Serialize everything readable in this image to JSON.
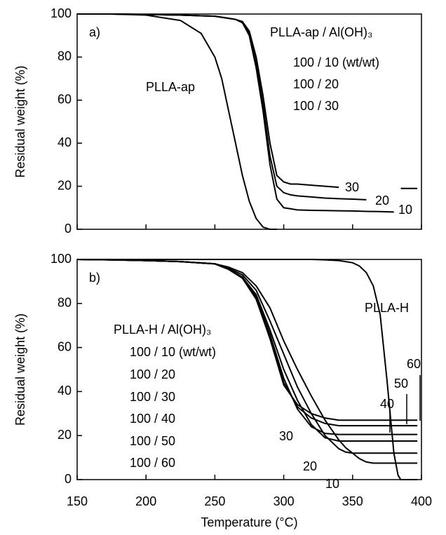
{
  "chart_data": [
    {
      "type": "line",
      "panel_label": "a)",
      "ylabel": "Residual weight  (%)",
      "xlim": [
        150,
        400
      ],
      "xticks": [
        150,
        200,
        250,
        300,
        350,
        400
      ],
      "ylim": [
        0,
        100
      ],
      "yticks": [
        0,
        20,
        40,
        60,
        80,
        100
      ],
      "annotations": [
        "PLLA-ap / Al(OH)₃",
        "100 / 10 (wt/wt)",
        "100 / 20",
        "100 / 30"
      ],
      "x": [
        150,
        175,
        200,
        225,
        240,
        250,
        255,
        260,
        265,
        270,
        275,
        280,
        285,
        290,
        295,
        300,
        305,
        310,
        320,
        330,
        340,
        350,
        360,
        370,
        380,
        385,
        397
      ],
      "series": [
        {
          "name": "PLLA-ap",
          "color": "#000000",
          "values": [
            100,
            100,
            99.5,
            97,
            91,
            80,
            70,
            55,
            40,
            25,
            13,
            5,
            1,
            0,
            0,
            null,
            null,
            null,
            null,
            null,
            null,
            null,
            null,
            null,
            null,
            null,
            null
          ]
        },
        {
          "name": "10",
          "color": "#000000",
          "values": [
            100,
            100,
            99.8,
            99.5,
            99.2,
            99,
            98.5,
            98,
            97.5,
            96,
            90,
            75,
            55,
            30,
            14,
            10,
            9.5,
            9,
            8.8,
            8.7,
            8.6,
            8.5,
            8.3,
            8.2,
            8,
            null,
            null
          ]
        },
        {
          "name": "20",
          "color": "#000000",
          "values": [
            100,
            100,
            99.8,
            99.5,
            99.2,
            99,
            98.5,
            98,
            97.5,
            96,
            91,
            77,
            58,
            34,
            20,
            17,
            16,
            15.5,
            15,
            14.5,
            14.2,
            14,
            13.7,
            null,
            null,
            null,
            null
          ]
        },
        {
          "name": "30",
          "color": "#000000",
          "values": [
            100,
            100,
            99.8,
            99.5,
            99.2,
            99,
            98.5,
            98,
            97.5,
            96.5,
            92,
            80,
            62,
            40,
            25,
            22,
            21,
            21,
            20.5,
            20,
            19.5,
            null,
            null,
            null,
            null,
            19,
            19
          ]
        }
      ]
    },
    {
      "type": "line",
      "panel_label": "b)",
      "ylabel": "Residual weight  (%)",
      "xlabel": "Temperature (°C)",
      "xlim": [
        150,
        400
      ],
      "xticks": [
        150,
        200,
        250,
        300,
        350,
        400
      ],
      "ylim": [
        0,
        100
      ],
      "yticks": [
        0,
        20,
        40,
        60,
        80,
        100
      ],
      "annotations": [
        "PLLA-H / Al(OH)₃",
        "100 / 10 (wt/wt)",
        "100 / 20",
        "100 / 30",
        "100 / 40",
        "100 / 50",
        "100 / 60"
      ],
      "x": [
        150,
        175,
        200,
        225,
        250,
        260,
        270,
        280,
        290,
        300,
        310,
        320,
        330,
        340,
        345,
        350,
        355,
        360,
        365,
        370,
        375,
        378,
        380,
        383,
        385,
        397
      ],
      "series": [
        {
          "name": "PLLA-H",
          "color": "#000000",
          "values": [
            100,
            100,
            100,
            100,
            100,
            100,
            100,
            100,
            100,
            100,
            100,
            100,
            99.8,
            99.5,
            99,
            98.5,
            97,
            94,
            88,
            75,
            45,
            25,
            12,
            2,
            0,
            0
          ]
        },
        {
          "name": "10",
          "color": "#000000",
          "values": [
            100,
            99.8,
            99.5,
            99,
            98,
            96.5,
            94,
            88,
            78,
            63,
            50,
            38,
            27,
            18,
            14.5,
            12,
            9.5,
            8,
            7.5,
            7.5,
            7.5,
            7.5,
            7.5,
            7.5,
            7.5,
            7.5
          ]
        },
        {
          "name": "20",
          "color": "#000000",
          "values": [
            100,
            99.8,
            99.5,
            99,
            98,
            96,
            93,
            86,
            72,
            57,
            42,
            30,
            20,
            14,
            12.5,
            12,
            12,
            12,
            12,
            12,
            12,
            12,
            12,
            12,
            12,
            12
          ]
        },
        {
          "name": "30",
          "color": "#000000",
          "values": [
            100,
            99.8,
            99.5,
            99,
            98,
            95.5,
            92,
            84,
            68,
            50,
            36,
            25,
            19,
            17.5,
            17.5,
            17.5,
            17.5,
            17.5,
            17.5,
            17.5,
            17.5,
            17.5,
            17.5,
            17.5,
            17.5,
            17.5
          ]
        },
        {
          "name": "40",
          "color": "#000000",
          "values": [
            100,
            99.8,
            99.5,
            99,
            98,
            95.5,
            92,
            83,
            66,
            46,
            32,
            24,
            21,
            20.5,
            20.5,
            20.5,
            20.5,
            20.5,
            20.5,
            20.5,
            20.5,
            20.5,
            20.5,
            20.5,
            20.5,
            20.5
          ]
        },
        {
          "name": "50",
          "color": "#000000",
          "values": [
            100,
            99.8,
            99.5,
            99,
            98,
            95.5,
            91.5,
            82,
            65,
            44,
            33,
            28,
            25.5,
            24.5,
            24.5,
            24.5,
            24.5,
            24.5,
            24.5,
            24.5,
            24.5,
            24.5,
            24.5,
            24.5,
            24.5,
            24.5
          ]
        },
        {
          "name": "60",
          "color": "#000000",
          "values": [
            100,
            99.8,
            99.5,
            99,
            98,
            95.5,
            91.5,
            82,
            64,
            43,
            34,
            30,
            28,
            27,
            27,
            27,
            27,
            27,
            27,
            27,
            27,
            27,
            27,
            27,
            27,
            27
          ]
        }
      ]
    }
  ]
}
